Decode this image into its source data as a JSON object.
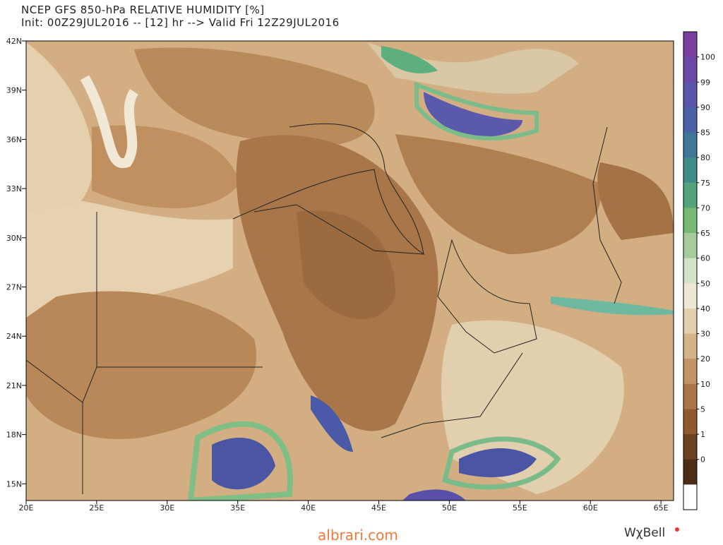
{
  "header": {
    "title": "NCEP GFS 850-hPa RELATIVE HUMIDITY [%]",
    "subtitle": "Init: 00Z29JUL2016 -- [12] hr --> Valid Fri 12Z29JUL2016"
  },
  "map": {
    "lat_labels": [
      "42N",
      "39N",
      "36N",
      "33N",
      "30N",
      "27N",
      "24N",
      "21N",
      "18N",
      "15N"
    ],
    "lon_labels": [
      "20E",
      "25E",
      "30E",
      "35E",
      "40E",
      "45E",
      "50E",
      "55E",
      "60E",
      "65E"
    ]
  },
  "colorbar": {
    "labels": [
      "100",
      "99",
      "90",
      "85",
      "80",
      "75",
      "70",
      "65",
      "60",
      "50",
      "40",
      "30",
      "20",
      "10",
      "5",
      "1",
      "0"
    ],
    "colors": [
      "#7a3f9e",
      "#6a49a6",
      "#5b55ab",
      "#4a63a6",
      "#3f7799",
      "#3f8d88",
      "#52a57b",
      "#78ba73",
      "#a6cc9b",
      "#d2e3c8",
      "#eee7d6",
      "#e2cfad",
      "#d3b387",
      "#c09464",
      "#aa7645",
      "#8f5b2d",
      "#6c4221",
      "#4b2d14",
      "#ffffff"
    ]
  },
  "footer": {
    "source": "albrari.com",
    "brand": "WχBell"
  }
}
